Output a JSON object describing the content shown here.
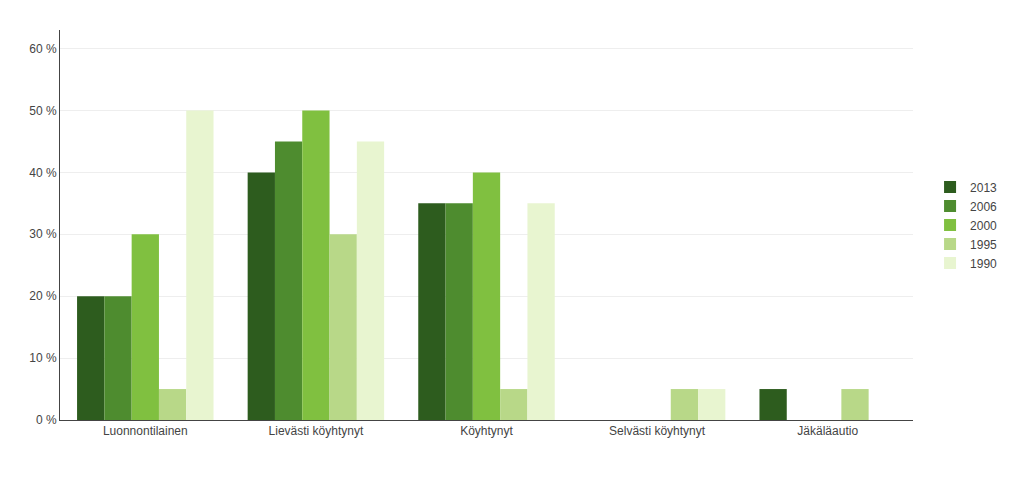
{
  "chart_data": {
    "type": "bar",
    "categories": [
      "Luonnontilainen",
      "Lievästi köyhtynyt",
      "Köyhtynyt",
      "Selvästi köyhtynyt",
      "Jäkäläautio"
    ],
    "series": [
      {
        "name": "2013",
        "color": "#2d5c1e",
        "values": [
          20,
          40,
          35,
          0,
          5
        ]
      },
      {
        "name": "2006",
        "color": "#4e8c2f",
        "values": [
          20,
          45,
          35,
          0,
          0
        ]
      },
      {
        "name": "2000",
        "color": "#80c040",
        "values": [
          30,
          50,
          40,
          0,
          0
        ]
      },
      {
        "name": "1995",
        "color": "#b8d888",
        "values": [
          5,
          30,
          5,
          5,
          5
        ]
      },
      {
        "name": "1990",
        "color": "#e8f5d0",
        "values": [
          50,
          45,
          35,
          5,
          0
        ]
      }
    ],
    "ylim": [
      0,
      63
    ],
    "yticks": [
      {
        "value": 0,
        "label": "0 %"
      },
      {
        "value": 10,
        "label": "10 %"
      },
      {
        "value": 20,
        "label": "20 %"
      },
      {
        "value": 30,
        "label": "30 %"
      },
      {
        "value": 40,
        "label": "40 %"
      },
      {
        "value": 50,
        "label": "50 %"
      },
      {
        "value": 60,
        "label": "60 %"
      }
    ],
    "grid": true,
    "legend": "right"
  }
}
